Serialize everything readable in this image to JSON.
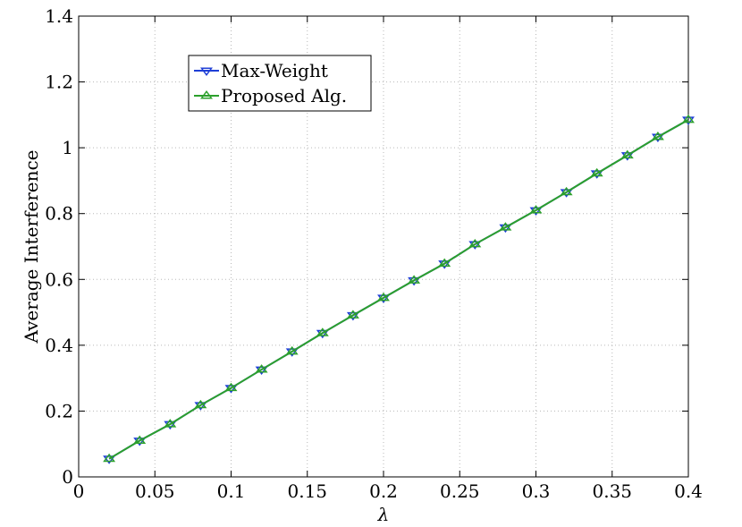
{
  "chart_data": {
    "type": "line",
    "title": "",
    "xlabel": "λ",
    "ylabel": "Average Interference",
    "xlim": [
      0,
      0.4
    ],
    "ylim": [
      0,
      1.4
    ],
    "xticks": [
      {
        "value": 0,
        "label": "0"
      },
      {
        "value": 0.05,
        "label": "0.05"
      },
      {
        "value": 0.1,
        "label": "0.1"
      },
      {
        "value": 0.15,
        "label": "0.15"
      },
      {
        "value": 0.2,
        "label": "0.2"
      },
      {
        "value": 0.25,
        "label": "0.25"
      },
      {
        "value": 0.3,
        "label": "0.3"
      },
      {
        "value": 0.35,
        "label": "0.35"
      },
      {
        "value": 0.4,
        "label": "0.4"
      }
    ],
    "yticks": [
      {
        "value": 0,
        "label": "0"
      },
      {
        "value": 0.2,
        "label": "0.2"
      },
      {
        "value": 0.4,
        "label": "0.4"
      },
      {
        "value": 0.6,
        "label": "0.6"
      },
      {
        "value": 0.8,
        "label": "0.8"
      },
      {
        "value": 1.0,
        "label": "1"
      },
      {
        "value": 1.2,
        "label": "1.2"
      },
      {
        "value": 1.4,
        "label": "1.4"
      }
    ],
    "grid": true,
    "legend_position": "top-left",
    "x": [
      0.02,
      0.04,
      0.06,
      0.08,
      0.1,
      0.12,
      0.14,
      0.16,
      0.18,
      0.2,
      0.22,
      0.24,
      0.26,
      0.28,
      0.3,
      0.32,
      0.34,
      0.36,
      0.38,
      0.4
    ],
    "series": [
      {
        "name": "Max-Weight",
        "color": "#1f3fd6",
        "marker": "triangle-down",
        "values": [
          0.055,
          0.11,
          0.16,
          0.218,
          0.27,
          0.326,
          0.381,
          0.437,
          0.491,
          0.544,
          0.597,
          0.648,
          0.707,
          0.758,
          0.81,
          0.865,
          0.922,
          0.977,
          1.033,
          1.085
        ]
      },
      {
        "name": "Proposed Alg.",
        "color": "#2ca02c",
        "marker": "triangle-up",
        "values": [
          0.055,
          0.11,
          0.16,
          0.218,
          0.27,
          0.326,
          0.381,
          0.437,
          0.491,
          0.544,
          0.597,
          0.648,
          0.707,
          0.758,
          0.81,
          0.865,
          0.922,
          0.977,
          1.033,
          1.085
        ]
      }
    ]
  }
}
